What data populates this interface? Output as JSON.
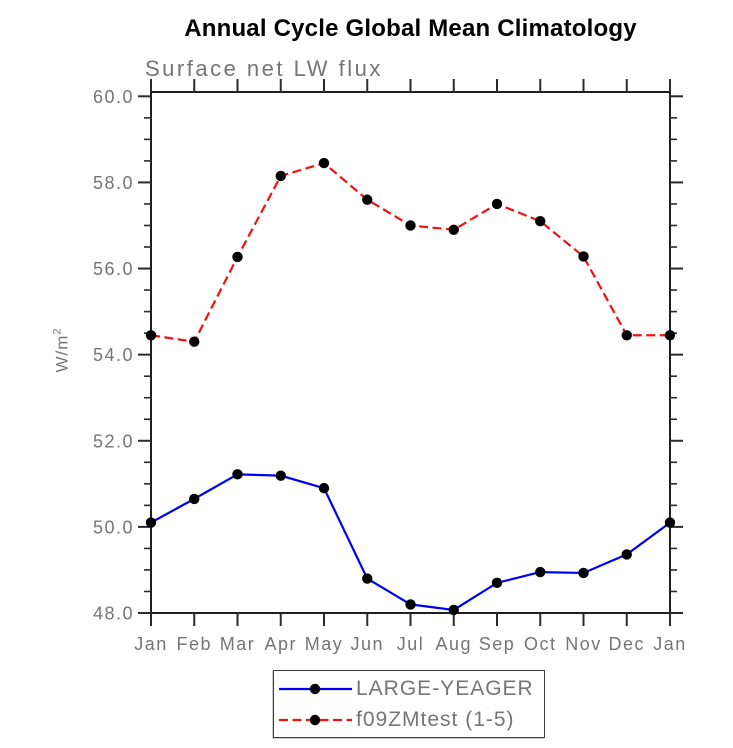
{
  "chart_data": {
    "type": "line",
    "title": "Annual Cycle Global Mean Climatology",
    "subtitle": "Surface net LW flux",
    "ylabel_base": "W/m",
    "ylabel_exponent": "2",
    "categories": [
      "Jan",
      "Feb",
      "Mar",
      "Apr",
      "May",
      "Jun",
      "Jul",
      "Aug",
      "Sep",
      "Oct",
      "Nov",
      "Dec",
      "Jan"
    ],
    "y_tick_labels": [
      "48.0",
      "50.0",
      "52.0",
      "54.0",
      "56.0",
      "58.0",
      "60.0"
    ],
    "y_major_ticks": [
      48.0,
      50.0,
      52.0,
      54.0,
      56.0,
      58.0,
      60.0
    ],
    "y_minor_step": 0.5,
    "ylim": [
      48.0,
      60.1
    ],
    "grid": false,
    "legend_position": "bottom-center",
    "series": [
      {
        "name": "LARGE-YEAGER",
        "color": "#0000f5",
        "line_style": "solid",
        "marker": "circle",
        "marker_color": "#000000",
        "values": [
          50.1,
          50.65,
          51.22,
          51.19,
          50.9,
          48.8,
          48.2,
          48.07,
          48.7,
          48.95,
          48.93,
          49.36,
          50.1
        ]
      },
      {
        "name": "f09ZMtest (1-5)",
        "color": "#f50f0f",
        "line_style": "dashed",
        "marker": "circle",
        "marker_color": "#000000",
        "values": [
          54.45,
          54.3,
          56.27,
          58.15,
          58.45,
          57.6,
          57.0,
          56.9,
          57.5,
          57.1,
          56.28,
          54.45,
          54.45
        ]
      }
    ]
  },
  "style_colors": {
    "frame": "#1f1f1f",
    "tick": "#2a2a2a",
    "text": "#757575"
  }
}
